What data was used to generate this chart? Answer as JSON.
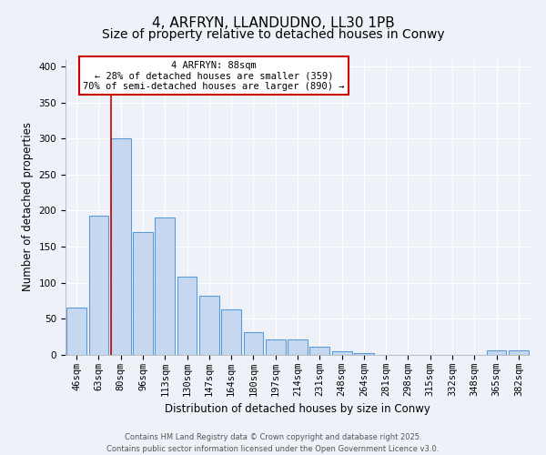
{
  "title": "4, ARFRYN, LLANDUDNO, LL30 1PB",
  "subtitle": "Size of property relative to detached houses in Conwy",
  "xlabel": "Distribution of detached houses by size in Conwy",
  "ylabel": "Number of detached properties",
  "bin_labels": [
    "46sqm",
    "63sqm",
    "80sqm",
    "96sqm",
    "113sqm",
    "130sqm",
    "147sqm",
    "164sqm",
    "180sqm",
    "197sqm",
    "214sqm",
    "231sqm",
    "248sqm",
    "264sqm",
    "281sqm",
    "298sqm",
    "315sqm",
    "332sqm",
    "348sqm",
    "365sqm",
    "382sqm"
  ],
  "bar_heights": [
    65,
    193,
    300,
    170,
    190,
    108,
    82,
    63,
    31,
    21,
    21,
    11,
    5,
    3,
    0,
    0,
    0,
    0,
    0,
    6,
    6
  ],
  "bar_color": "#c5d8f0",
  "bar_edgecolor": "#5b9bd5",
  "bar_linewidth": 0.8,
  "vline_x": 2,
  "vline_color": "#cc0000",
  "annotation_title": "4 ARFRYN: 88sqm",
  "annotation_line2": "← 28% of detached houses are smaller (359)",
  "annotation_line3": "70% of semi-detached houses are larger (890) →",
  "annotation_box_facecolor": "#ffffff",
  "annotation_box_edgecolor": "#cc0000",
  "ylim": [
    0,
    410
  ],
  "yticks": [
    0,
    50,
    100,
    150,
    200,
    250,
    300,
    350,
    400
  ],
  "bin_edges_idx": [
    0,
    1,
    2,
    3,
    4,
    5,
    6,
    7,
    8,
    9,
    10,
    11,
    12,
    13,
    14,
    15,
    16,
    17,
    18,
    19,
    20,
    21
  ],
  "background_color": "#eef2f8",
  "grid_color": "#ffffff",
  "title_fontsize": 11,
  "subtitle_fontsize": 10,
  "axis_label_fontsize": 8.5,
  "tick_fontsize": 7.5,
  "annotation_fontsize": 7.5,
  "footer_line1": "Contains HM Land Registry data © Crown copyright and database right 2025.",
  "footer_line2": "Contains public sector information licensed under the Open Government Licence v3.0."
}
